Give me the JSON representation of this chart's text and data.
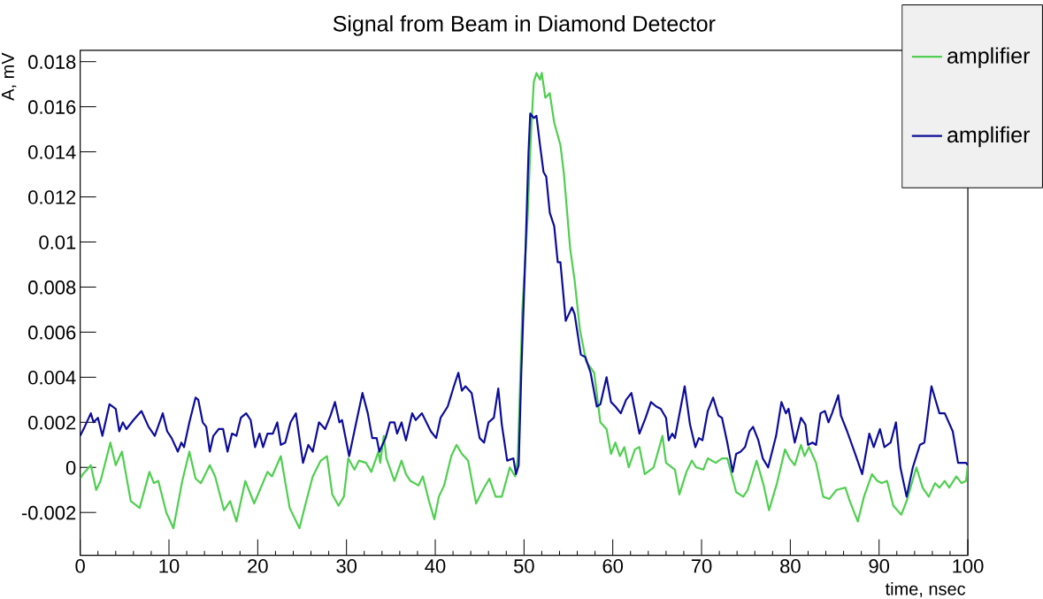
{
  "chart_data": {
    "type": "line",
    "title": "Signal from Beam in Diamond Detector",
    "xlabel": "time, nsec",
    "ylabel": "A, mV",
    "xlim": [
      0,
      100
    ],
    "ylim": [
      -0.0039,
      0.0185
    ],
    "xticks": [
      0,
      10,
      20,
      30,
      40,
      50,
      60,
      70,
      80,
      90,
      100
    ],
    "yticks": [
      -0.002,
      0,
      0.002,
      0.004,
      0.006,
      0.008,
      0.01,
      0.012,
      0.014,
      0.016,
      0.018
    ],
    "legend": "top right",
    "marker": "none",
    "line_style": "solid",
    "series": [
      {
        "name": "amplifier",
        "color": "#4fcf4f",
        "x": [
          0,
          0.3,
          1.2,
          1.8,
          2.3,
          3.4,
          4,
          4.7,
          5.7,
          6.7,
          7.8,
          8.3,
          8.8,
          9.7,
          10.5,
          11.5,
          12.3,
          13,
          13.6,
          14.6,
          15.2,
          16.2,
          16.9,
          17.6,
          18.6,
          19.6,
          21.1,
          21.6,
          22.6,
          23.6,
          24.7,
          25.4,
          26.2,
          27.1,
          27.8,
          28.4,
          29.1,
          29.7,
          30.2,
          30.9,
          31.4,
          32.2,
          32.8,
          33.6,
          33.8,
          34.2,
          34.5,
          35.4,
          36.2,
          36.7,
          37.2,
          38.1,
          38.6,
          39.3,
          39.9,
          40.4,
          41,
          41.8,
          42.4,
          43,
          43.7,
          44.6,
          45.5,
          46.1,
          46.8,
          47.5,
          48.4,
          49,
          49.3,
          49.8,
          50.4,
          50.8,
          51.1,
          51.4,
          51.8,
          52,
          52.4,
          52.9,
          53.4,
          54.1,
          54.5,
          55.2,
          55.7,
          56.3,
          57,
          57.9,
          58.6,
          59.3,
          59.8,
          60.3,
          60.8,
          61.3,
          61.8,
          62.5,
          63,
          63.6,
          64.6,
          65.6,
          66,
          67,
          67.5,
          68.3,
          68.9,
          69.4,
          70.2,
          70.7,
          71.6,
          72.3,
          72.9,
          73.9,
          74.7,
          75.2,
          76.2,
          77,
          77.6,
          78.5,
          79.4,
          79.9,
          80.5,
          81.2,
          81.6,
          82.1,
          82.9,
          83.7,
          84.4,
          85.2,
          86.2,
          86.7,
          87.6,
          88.3,
          89.2,
          89.8,
          90.3,
          90.9,
          91.6,
          92.5,
          93.1,
          94.2,
          94.9,
          95.6,
          96.3,
          96.8,
          97.4,
          97.9,
          98.7,
          99.3,
          99.8,
          100
        ],
        "values": [
          -0.0005,
          -0.0003,
          0.0001,
          -0.001,
          -0.0006,
          0.0011,
          0.0001,
          0.0007,
          -0.0015,
          -0.0018,
          -0.0002,
          -0.0007,
          -0.0006,
          -0.002,
          -0.0027,
          -0.0006,
          0.0007,
          -0.0005,
          -0.0007,
          0.0001,
          -0.0004,
          -0.0019,
          -0.0015,
          -0.0024,
          -0.0006,
          -0.0016,
          -0.0002,
          -0.0004,
          0.0005,
          -0.0018,
          -0.0027,
          -0.0016,
          -0.0004,
          0.0003,
          0.0005,
          -0.0012,
          -0.0017,
          -0.0013,
          0.0004,
          -0.0001,
          0.0003,
          0.0002,
          -0.0002,
          0.0007,
          0.0002,
          0.0014,
          0.0004,
          -0.0006,
          0.0003,
          -0.0003,
          -0.0006,
          -0.0008,
          -0.0004,
          -0.0015,
          -0.0023,
          -0.0013,
          -0.0008,
          0.0005,
          0.001,
          0.0006,
          0.0003,
          -0.0016,
          -0.0009,
          -0.0005,
          -0.0013,
          -0.0013,
          0,
          -0.0004,
          0.0004,
          0.0069,
          0.0111,
          0.0149,
          0.0171,
          0.0175,
          0.0172,
          0.0175,
          0.0164,
          0.0166,
          0.0153,
          0.0143,
          0.013,
          0.0097,
          0.0083,
          0.0061,
          0.0047,
          0.0042,
          0.002,
          0.0017,
          0.0006,
          0.0011,
          0.0005,
          0.0009,
          0,
          0.0008,
          0.0009,
          -0.0003,
          0,
          0.0014,
          0.0002,
          -0.0001,
          -0.0012,
          -0.0002,
          0.0003,
          0,
          -0.0001,
          0.0004,
          0.0002,
          0.0004,
          0.0004,
          -0.0011,
          -0.0013,
          -0.001,
          0.0003,
          -0.0008,
          -0.0019,
          -0.0007,
          0.0008,
          0.0004,
          0.0001,
          0.001,
          0.0005,
          0.0009,
          0.0002,
          -0.0013,
          -0.0014,
          -0.001,
          -0.0009,
          -0.0015,
          -0.0024,
          -0.0013,
          -0.0003,
          -0.0006,
          -0.0007,
          -0.0006,
          -0.0017,
          -0.0021,
          -0.0015,
          0,
          -0.0009,
          -0.0013,
          -0.0007,
          -0.0009,
          -0.0006,
          -0.0009,
          -0.0004,
          -0.0007,
          -0.0006,
          0.0001
        ]
      },
      {
        "name": "amplifier",
        "color": "#0c0c9a",
        "x": [
          0,
          0.5,
          1.2,
          1.5,
          2,
          2.5,
          3.3,
          4,
          4.4,
          4.8,
          5.2,
          6,
          6.9,
          7.7,
          8.4,
          9.3,
          9.8,
          10.3,
          11,
          11.4,
          11.7,
          12.3,
          13,
          13.3,
          13.8,
          14.2,
          14.6,
          15,
          15.6,
          16.1,
          16.6,
          17.1,
          17.6,
          18.1,
          18.7,
          19.2,
          19.7,
          20.2,
          20.6,
          21.1,
          21.7,
          22.2,
          22.6,
          23.1,
          23.7,
          24.3,
          25.1,
          25.7,
          26.2,
          26.9,
          27.6,
          28.2,
          28.7,
          29.2,
          29.5,
          30.3,
          31.1,
          31.8,
          32.4,
          32.9,
          33.4,
          33.7,
          34.4,
          34.9,
          35.4,
          35.7,
          36.2,
          36.7,
          37.4,
          37.8,
          38.5,
          39.5,
          40.1,
          40.6,
          41.4,
          42.1,
          42.6,
          43,
          43.4,
          44.1,
          45,
          45.5,
          46,
          46.6,
          47.1,
          47.5,
          48.1,
          48.8,
          49.1,
          49.4,
          49.7,
          50.2,
          50.5,
          50.7,
          51.1,
          51.4,
          51.8,
          52.2,
          52.5,
          52.9,
          53.4,
          53.8,
          54.1,
          54.7,
          55.4,
          55.7,
          56.4,
          56.9,
          57.5,
          58.2,
          58.6,
          59.3,
          59.8,
          60.3,
          60.9,
          61.5,
          62.1,
          63,
          63.7,
          64.3,
          64.9,
          65.4,
          66,
          66.3,
          66.7,
          67,
          68.1,
          68.7,
          69.3,
          69.7,
          70.1,
          70.7,
          71.3,
          71.9,
          72.3,
          72.9,
          73.5,
          73.9,
          74.4,
          74.9,
          75.4,
          75.8,
          76.4,
          76.9,
          77.5,
          78.4,
          79,
          79.5,
          79.8,
          80.5,
          81.2,
          81.7,
          82,
          82.5,
          82.9,
          83.4,
          83.9,
          84.3,
          84.7,
          85.4,
          85.7,
          86.4,
          87.4,
          88.1,
          88.9,
          89.4,
          90.1,
          90.6,
          91.3,
          91.9,
          92.4,
          93.1,
          93.8,
          94.6,
          95.1,
          95.9,
          96.8,
          97.4,
          98.3,
          98.9,
          99.8,
          100
        ],
        "values": [
          0.0014,
          0.0018,
          0.0024,
          0.002,
          0.0022,
          0.0014,
          0.0028,
          0.0026,
          0.0016,
          0.002,
          0.0017,
          0.0021,
          0.0025,
          0.0018,
          0.0014,
          0.0024,
          0.0016,
          0.0013,
          0.0007,
          0.0011,
          0.0009,
          0.002,
          0.0031,
          0.003,
          0.002,
          0.0018,
          0.0007,
          0.0014,
          0.0017,
          0.0017,
          0.0007,
          0.0015,
          0.0014,
          0.0022,
          0.0024,
          0.0021,
          0.0009,
          0.0015,
          0.0009,
          0.0015,
          0.0015,
          0.002,
          0.001,
          0.0011,
          0.002,
          0.0024,
          0.0002,
          0.001,
          0.0007,
          0.002,
          0.0017,
          0.0023,
          0.0029,
          0.002,
          0.0021,
          0.0005,
          0.002,
          0.0033,
          0.0024,
          0.0013,
          0.0013,
          0.0007,
          0.0013,
          0.002,
          0.002,
          0.0015,
          0.002,
          0.0012,
          0.0024,
          0.0021,
          0.0024,
          0.0016,
          0.0013,
          0.0022,
          0.0027,
          0.0036,
          0.0042,
          0.0034,
          0.0036,
          0.0033,
          0.0013,
          0.0011,
          0.002,
          0.0022,
          0.0035,
          0.0019,
          0.0003,
          0.0004,
          -0.0003,
          0.0001,
          0.0043,
          0.01,
          0.0139,
          0.0157,
          0.0155,
          0.0156,
          0.0143,
          0.0131,
          0.0129,
          0.0113,
          0.0107,
          0.0091,
          0.0091,
          0.0065,
          0.0071,
          0.0068,
          0.005,
          0.0049,
          0.0042,
          0.0027,
          0.0028,
          0.004,
          0.0029,
          0.0027,
          0.0024,
          0.003,
          0.0033,
          0.0015,
          0.0022,
          0.0029,
          0.0027,
          0.0026,
          0.0022,
          0.0012,
          0.0015,
          0.0013,
          0.0036,
          0.0019,
          0.0009,
          0.0013,
          0.0012,
          0.0025,
          0.0031,
          0.0023,
          0.0022,
          0.0011,
          -0.0002,
          0.0006,
          0.0007,
          0.0009,
          0.0016,
          0.0018,
          0.0012,
          0.0004,
          0,
          0.0014,
          0.0029,
          0.0024,
          0.0026,
          0.0011,
          0.0022,
          0.0019,
          0.001,
          0.0011,
          0.001,
          0.0024,
          0.0025,
          0.002,
          0.0024,
          0.0032,
          0.0023,
          0.0016,
          0.0005,
          -0.0003,
          0.0015,
          0.0009,
          0.0017,
          0.0009,
          0.0011,
          0.002,
          0,
          -0.0013,
          0,
          0.001,
          0.0011,
          0.0036,
          0.0024,
          0.0024,
          0.0016,
          0.0002,
          0.0002,
          0.0001
        ]
      }
    ]
  }
}
